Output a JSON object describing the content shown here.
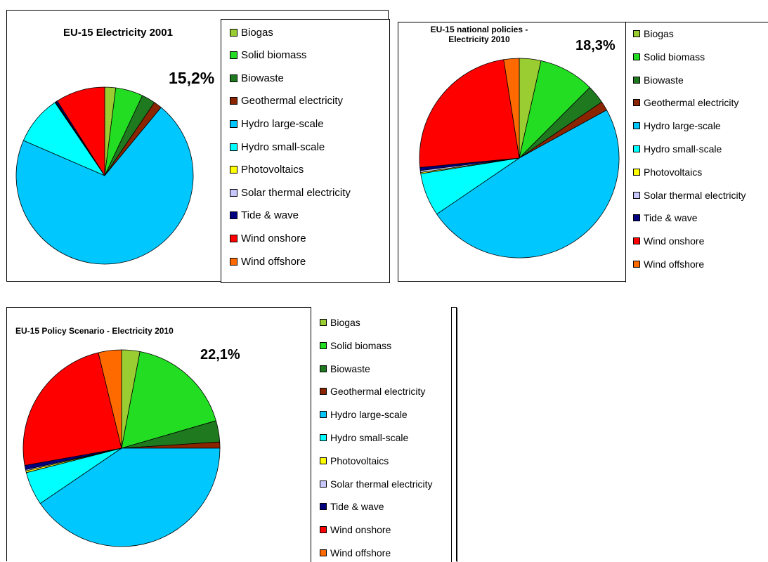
{
  "colors": {
    "Biogas": "#9acd32",
    "Solid biomass": "#22dd22",
    "Biowaste": "#1f7a1f",
    "Geothermal electricity": "#8b2500",
    "Hydro large-scale": "#00c8ff",
    "Hydro small-scale": "#00ffff",
    "Photovoltaics": "#ffff00",
    "Solar thermal electricity": "#c8c8ff",
    "Tide & wave": "#000080",
    "Wind onshore": "#ff0000",
    "Wind offshore": "#ff6a00"
  },
  "chart_data": [
    {
      "type": "pie",
      "title": "EU-15 Electricity 2001",
      "annotation": "15,2%",
      "legend": [
        "Biogas",
        "Solid biomass",
        "Biowaste",
        "Geothermal electricity",
        "Hydro large-scale",
        "Hydro small-scale",
        "Photovoltaics",
        "Solar thermal electricity",
        "Tide & wave",
        "Wind onshore",
        "Wind offshore"
      ],
      "slices": [
        {
          "label": "Biogas",
          "value": 2.0
        },
        {
          "label": "Solid biomass",
          "value": 5.0
        },
        {
          "label": "Biowaste",
          "value": 2.5
        },
        {
          "label": "Geothermal electricity",
          "value": 1.5
        },
        {
          "label": "Hydro large-scale",
          "value": 70.5
        },
        {
          "label": "Hydro small-scale",
          "value": 9.0
        },
        {
          "label": "Photovoltaics",
          "value": 0.1
        },
        {
          "label": "Solar thermal electricity",
          "value": 0.1
        },
        {
          "label": "Tide & wave",
          "value": 0.3
        },
        {
          "label": "Wind onshore",
          "value": 9.0
        },
        {
          "label": "Wind offshore",
          "value": 0.0
        }
      ],
      "legend_placement": "right"
    },
    {
      "type": "pie",
      "title": "EU-15 national policies -\nElectricity 2010",
      "annotation": "18,3%",
      "legend": [
        "Biogas",
        "Solid biomass",
        "Biowaste",
        "Geothermal electricity",
        "Hydro large-scale",
        "Hydro small-scale",
        "Photovoltaics",
        "Solar thermal electricity",
        "Tide & wave",
        "Wind onshore",
        "Wind offshore"
      ],
      "slices": [
        {
          "label": "Biogas",
          "value": 3.5
        },
        {
          "label": "Solid biomass",
          "value": 9.0
        },
        {
          "label": "Biowaste",
          "value": 3.0
        },
        {
          "label": "Geothermal electricity",
          "value": 1.5
        },
        {
          "label": "Hydro large-scale",
          "value": 48.5
        },
        {
          "label": "Hydro small-scale",
          "value": 7.0
        },
        {
          "label": "Photovoltaics",
          "value": 0.2
        },
        {
          "label": "Solar thermal electricity",
          "value": 0.3
        },
        {
          "label": "Tide & wave",
          "value": 0.5
        },
        {
          "label": "Wind onshore",
          "value": 24.0
        },
        {
          "label": "Wind offshore",
          "value": 2.5
        }
      ],
      "legend_placement": "right"
    },
    {
      "type": "pie",
      "title": "EU-15 Policy Scenario - Electricity 2010",
      "annotation": "22,1%",
      "legend": [
        "Biogas",
        "Solid biomass",
        "Biowaste",
        "Geothermal electricity",
        "Hydro large-scale",
        "Hydro small-scale",
        "Photovoltaics",
        "Solar thermal electricity",
        "Tide & wave",
        "Wind onshore",
        "Wind offshore"
      ],
      "slices": [
        {
          "label": "Biogas",
          "value": 3.0
        },
        {
          "label": "Solid biomass",
          "value": 17.5
        },
        {
          "label": "Biowaste",
          "value": 3.5
        },
        {
          "label": "Geothermal electricity",
          "value": 1.0
        },
        {
          "label": "Hydro large-scale",
          "value": 40.5
        },
        {
          "label": "Hydro small-scale",
          "value": 5.5
        },
        {
          "label": "Photovoltaics",
          "value": 0.3
        },
        {
          "label": "Solar thermal electricity",
          "value": 0.2
        },
        {
          "label": "Tide & wave",
          "value": 0.7
        },
        {
          "label": "Wind onshore",
          "value": 24.0
        },
        {
          "label": "Wind offshore",
          "value": 3.8
        }
      ],
      "legend_placement": "right"
    }
  ]
}
